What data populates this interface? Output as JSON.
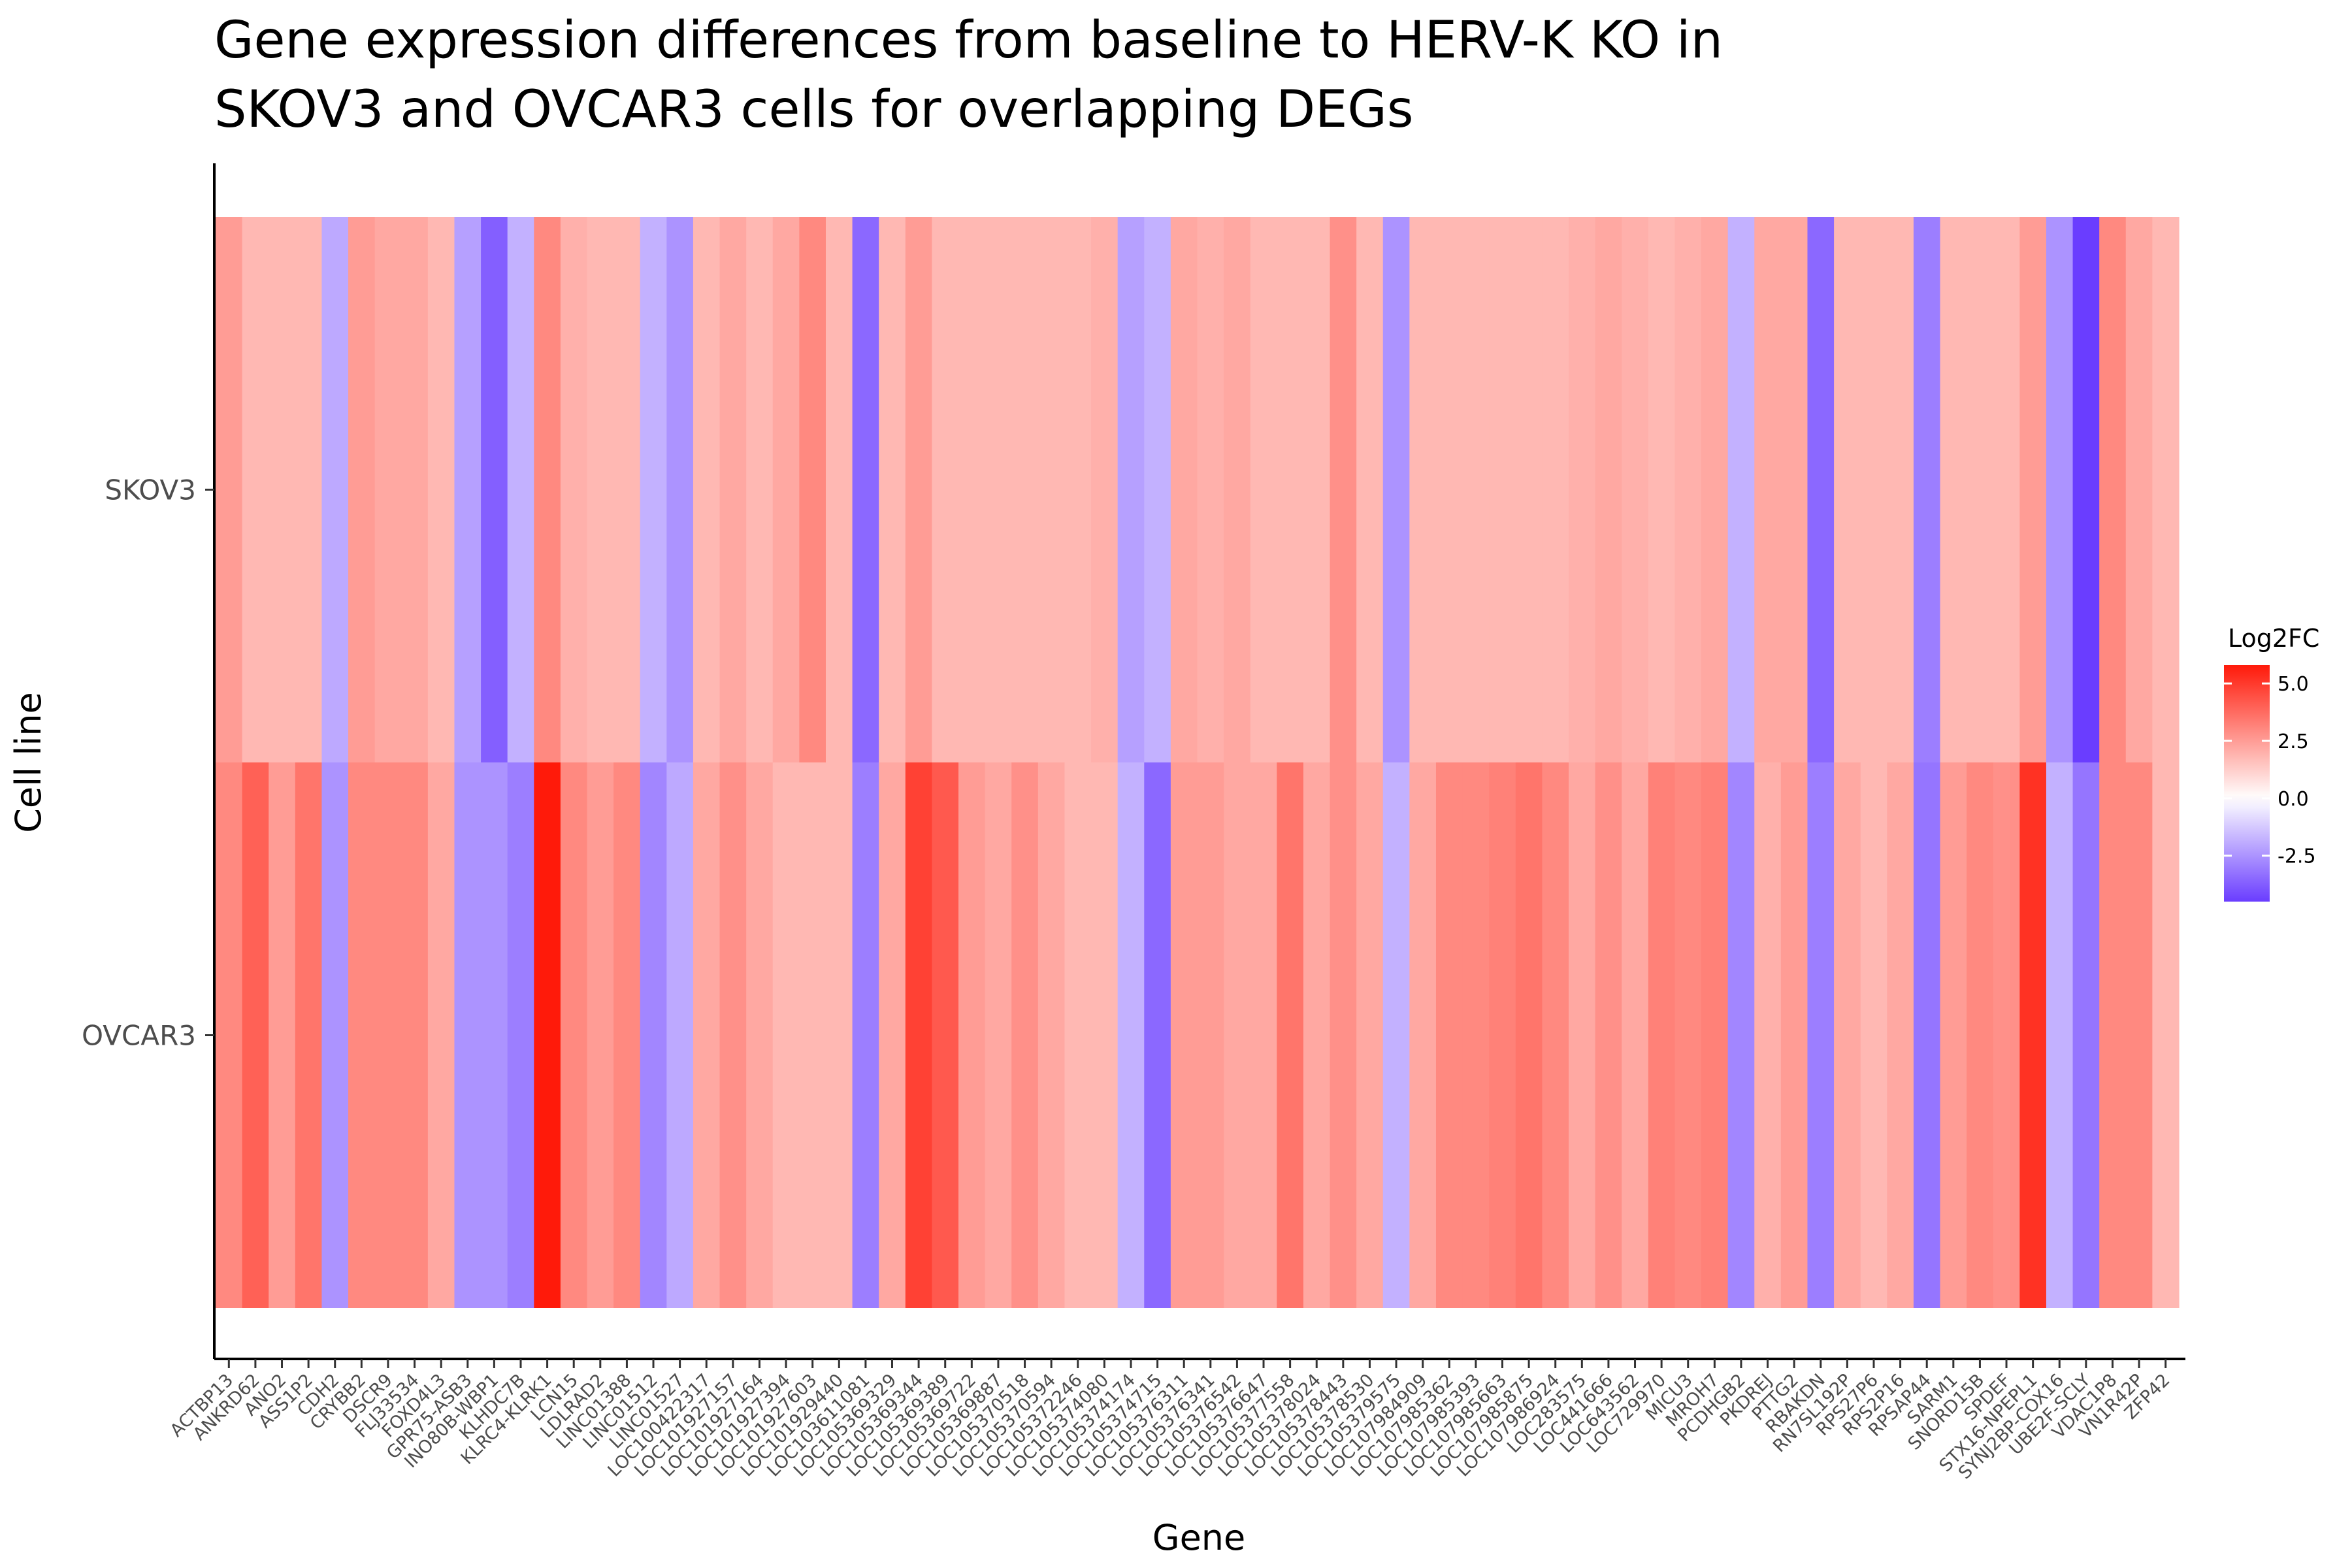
{
  "chart_data": {
    "type": "heatmap",
    "title": [
      "Gene expression differences from baseline to HERV-K KO in",
      "SKOV3 and OVCAR3 cells for overlapping DEGs"
    ],
    "xlabel": "Gene",
    "ylabel": "Cell line",
    "legend_title": "Log2FC",
    "legend_ticks": [
      "5.0",
      "2.5",
      "0.0",
      "-2.5"
    ],
    "legend_tick_values": [
      5.0,
      2.5,
      0.0,
      -2.5
    ],
    "legend_range": [
      -4.5,
      5.8
    ],
    "legend_position": "right",
    "colors": {
      "low": "#6a3dff",
      "mid": "#ffffff",
      "high": "#ff1a0a"
    },
    "grid": false,
    "rows": [
      "SKOV3",
      "OVCAR3"
    ],
    "genes": [
      "ACTBP13",
      "ANKRD62",
      "ANO2",
      "ASS1P2",
      "CDH2",
      "CRYBB2",
      "DSCR9",
      "FLJ33534",
      "FOXD4L3",
      "GPR75-ASB3",
      "INO80B-WBP1",
      "KLHDC7B",
      "KLRC4-KLRK1",
      "LCN15",
      "LDLRAD2",
      "LINC01388",
      "LINC01512",
      "LINC01527",
      "LOC100422317",
      "LOC101927157",
      "LOC101927164",
      "LOC101927394",
      "LOC101927603",
      "LOC101929440",
      "LOC103611081",
      "LOC105369329",
      "LOC105369344",
      "LOC105369389",
      "LOC105369722",
      "LOC105369887",
      "LOC105370518",
      "LOC105370594",
      "LOC105372246",
      "LOC105374080",
      "LOC105374174",
      "LOC105374715",
      "LOC105376311",
      "LOC105376341",
      "LOC105376542",
      "LOC105376647",
      "LOC105377558",
      "LOC105378024",
      "LOC105378443",
      "LOC105378530",
      "LOC105379575",
      "LOC107984909",
      "LOC107985362",
      "LOC107985393",
      "LOC107985663",
      "LOC107985875",
      "LOC107986924",
      "LOC283575",
      "LOC441666",
      "LOC643562",
      "LOC729970",
      "MICU3",
      "MROH7",
      "PCDHGB2",
      "PKDREJ",
      "PTTG2",
      "RBAKDN",
      "RN7SL192P",
      "RPS27P6",
      "RPS2P16",
      "RPSAP44",
      "SARM1",
      "SNORD15B",
      "SPDEF",
      "STX16-NPEPL1",
      "SYNJ2BP-COX16",
      "UBE2F-SCLY",
      "VDAC1P8",
      "VN1R42P",
      "ZFP42"
    ],
    "values": [
      [
        2.5,
        1.8,
        1.8,
        1.8,
        -2.0,
        2.5,
        2.2,
        2.2,
        1.8,
        -2.2,
        -3.7,
        -1.8,
        3.0,
        2.0,
        1.8,
        1.8,
        -1.8,
        -2.5,
        1.8,
        2.2,
        1.8,
        2.2,
        3.0,
        1.8,
        -3.5,
        1.8,
        2.5,
        1.8,
        1.8,
        1.8,
        1.8,
        1.8,
        1.8,
        2.0,
        -2.2,
        -1.8,
        2.2,
        2.0,
        2.2,
        1.8,
        1.8,
        1.8,
        2.8,
        1.8,
        -2.5,
        1.8,
        1.8,
        1.8,
        1.8,
        1.8,
        1.8,
        2.0,
        2.2,
        2.0,
        1.8,
        2.0,
        2.2,
        -1.8,
        2.2,
        2.2,
        -3.5,
        1.8,
        1.8,
        1.8,
        -3.0,
        1.8,
        1.8,
        1.8,
        2.5,
        -2.5,
        -4.5,
        3.0,
        2.2,
        1.8
      ],
      [
        3.0,
        4.0,
        2.5,
        3.5,
        -2.5,
        3.0,
        3.0,
        3.0,
        2.2,
        -2.5,
        -2.5,
        -3.0,
        5.8,
        3.0,
        2.5,
        3.0,
        -2.8,
        -2.0,
        2.2,
        2.8,
        2.2,
        1.8,
        1.8,
        1.8,
        -3.0,
        2.2,
        4.8,
        4.2,
        2.5,
        2.2,
        2.8,
        2.2,
        1.8,
        1.8,
        -1.8,
        -3.5,
        2.5,
        2.5,
        2.2,
        2.2,
        3.5,
        2.2,
        2.8,
        2.2,
        -1.8,
        2.2,
        3.0,
        3.0,
        3.2,
        3.5,
        3.0,
        2.2,
        2.8,
        2.2,
        3.2,
        3.0,
        3.2,
        -2.8,
        2.0,
        2.5,
        -3.0,
        2.2,
        1.8,
        2.2,
        -3.2,
        2.5,
        3.0,
        2.8,
        5.2,
        -1.8,
        -3.2,
        3.0,
        3.0,
        1.8
      ]
    ]
  }
}
